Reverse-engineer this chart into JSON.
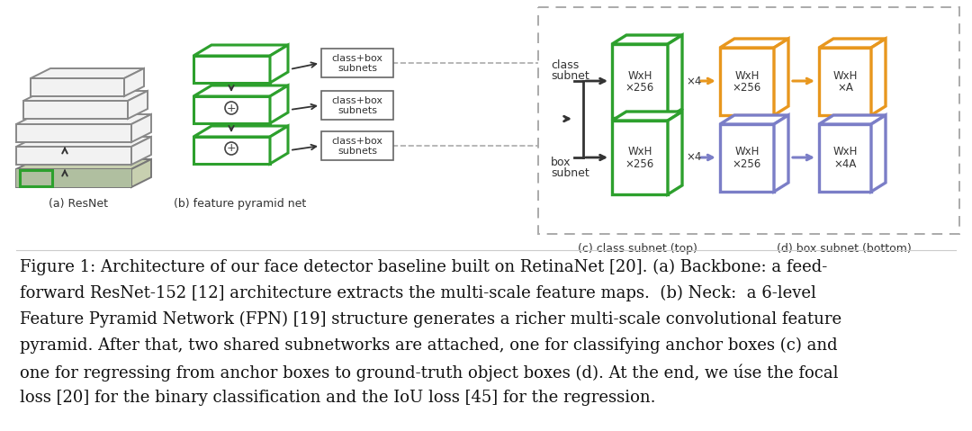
{
  "bg_color": "#ffffff",
  "caption_lines": [
    "Figure 1: Architecture of our face detector baseline built on RetinaNet [20]. (a) Backbone: a feed-",
    "forward ResNet-152 [12] architecture extracts the multi-scale feature maps.  (b) Neck:  a 6-level",
    "Feature Pyramid Network (FPN) [19] structure generates a richer multi-scale convolutional feature",
    "pyramid. After that, two shared subnetworks are attached, one for classifying anchor boxes (c) and",
    "one for regressing from anchor boxes to ground-truth object boxes (d). At the end, we úse the focal",
    "loss [20] for the binary classification and the IoU loss [45] for the regression."
  ],
  "caption_fontsize": 13.0,
  "label_a": "(a) ResNet",
  "label_b": "(b) feature pyramid net",
  "label_c": "(c) class subnet (top)",
  "label_d": "(d) box subnet (bottom)",
  "green_color": "#2da02d",
  "orange_color": "#e8971e",
  "blue_color": "#7b7ec7",
  "dark_gray": "#333333",
  "mid_gray": "#888888",
  "light_gray": "#d8d8d8",
  "face_gray": "#f2f2f2",
  "dashed_box_color": "#aaaaaa"
}
